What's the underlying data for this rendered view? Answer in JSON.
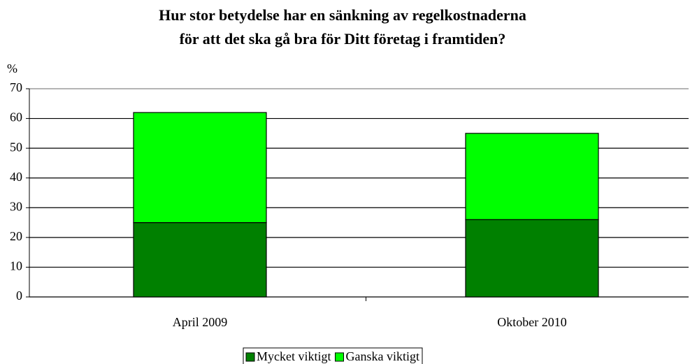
{
  "chart_data": {
    "type": "stacked_bar",
    "title": [
      "Hur stor betydelse har en sänkning av regelkostnaderna",
      "för att det ska gå bra för Ditt företag i framtiden?"
    ],
    "ylabel": "%",
    "categories": [
      "April 2009",
      "Oktober 2010"
    ],
    "series": [
      {
        "name": "Mycket viktigt",
        "color": "#008000",
        "values": [
          25,
          26
        ]
      },
      {
        "name": "Ganska viktigt",
        "color": "#00ff00",
        "values": [
          37,
          29
        ]
      }
    ],
    "ylim": [
      0,
      70
    ],
    "yticks": [
      0,
      10,
      20,
      30,
      40,
      50,
      60,
      70
    ],
    "grid": true,
    "legend": "bottom"
  }
}
